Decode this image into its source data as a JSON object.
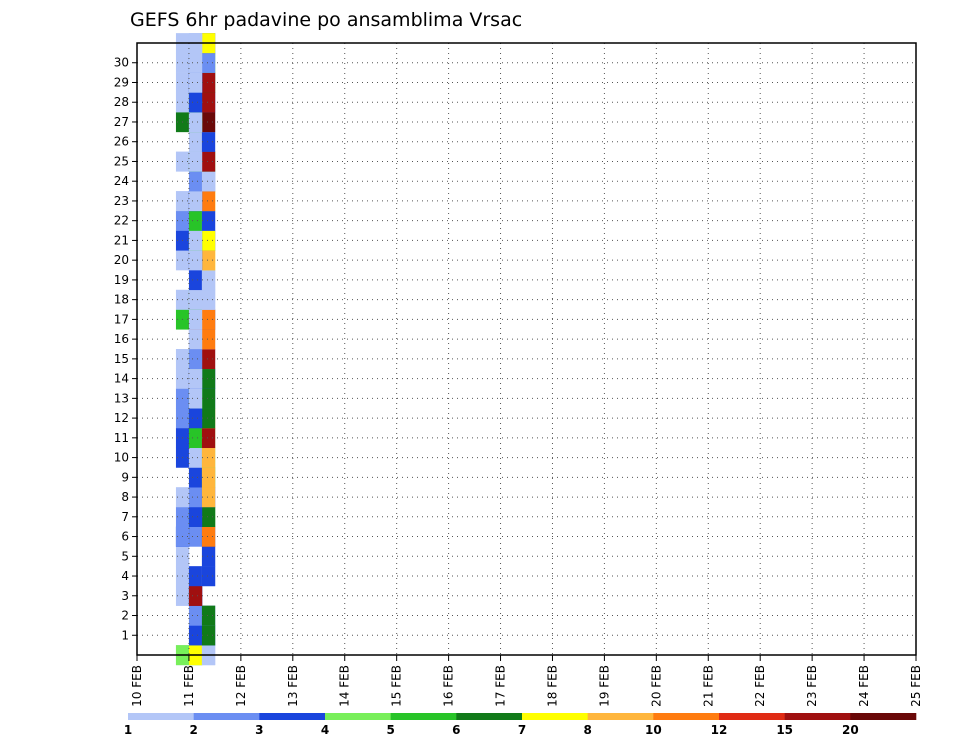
{
  "chart_data": {
    "type": "heatmap",
    "title": "GEFS 6hr padavine po ansamblima Vrsac",
    "xlabel": "",
    "ylabel": "",
    "x_tick_labels": [
      "10 FEB",
      "11 FEB",
      "12 FEB",
      "13 FEB",
      "14 FEB",
      "15 FEB",
      "16 FEB",
      "17 FEB",
      "18 FEB",
      "19 FEB",
      "20 FEB",
      "21 FEB",
      "22 FEB",
      "23 FEB",
      "24 FEB",
      "25 FEB"
    ],
    "y_tick_labels": [
      "1",
      "2",
      "3",
      "4",
      "5",
      "6",
      "7",
      "8",
      "9",
      "10",
      "11",
      "12",
      "13",
      "14",
      "15",
      "16",
      "17",
      "18",
      "19",
      "20",
      "21",
      "22",
      "23",
      "24",
      "25",
      "26",
      "27",
      "28",
      "29",
      "30"
    ],
    "x_step_hours": 6,
    "grid": true,
    "colorbar": {
      "labels": [
        "1",
        "2",
        "3",
        "4",
        "5",
        "6",
        "7",
        "8",
        "10",
        "12",
        "15",
        "20"
      ],
      "colors": [
        "#b3c6f7",
        "#6b8ef2",
        "#1a45dd",
        "#78ef5a",
        "#28c428",
        "#117a19",
        "#ffff00",
        "#ffb63d",
        "#ff7c10",
        "#e02b14",
        "#a01010",
        "#6a0808"
      ]
    },
    "cells": [
      [
        1,
        0,
        1
      ],
      [
        1,
        0,
        4
      ],
      [
        2,
        0,
        5
      ],
      [
        2,
        0,
        7
      ],
      [
        3,
        0,
        1
      ],
      [
        3,
        0,
        1
      ],
      [
        2,
        1,
        3
      ],
      [
        3,
        1,
        3
      ],
      [
        3,
        1,
        6
      ],
      [
        2,
        2,
        2
      ],
      [
        3,
        2,
        2
      ],
      [
        3,
        2,
        6
      ],
      [
        1,
        3,
        1
      ],
      [
        2,
        3,
        2
      ],
      [
        2,
        3,
        3
      ],
      [
        2,
        3,
        11
      ],
      [
        1,
        4,
        1
      ],
      [
        2,
        4,
        3
      ],
      [
        3,
        4,
        1
      ],
      [
        3,
        4,
        3
      ],
      [
        1,
        5,
        1
      ],
      [
        3,
        5,
        1
      ],
      [
        3,
        5,
        3
      ],
      [
        1,
        6,
        2
      ],
      [
        2,
        6,
        2
      ],
      [
        3,
        6,
        3
      ],
      [
        3,
        6,
        9
      ],
      [
        1,
        6,
        3
      ],
      [
        1,
        6,
        2
      ],
      [
        1,
        7,
        2
      ],
      [
        2,
        7,
        5
      ],
      [
        3,
        7,
        5
      ],
      [
        3,
        7,
        6
      ],
      [
        2,
        7,
        3
      ],
      [
        1,
        8,
        1
      ],
      [
        2,
        8,
        2
      ],
      [
        3,
        8,
        3
      ],
      [
        3,
        8,
        8
      ],
      [
        2,
        9,
        3
      ],
      [
        3,
        9,
        5
      ],
      [
        3,
        9,
        8
      ],
      [
        1,
        10,
        3
      ],
      [
        2,
        10,
        1
      ],
      [
        3,
        10,
        4
      ],
      [
        3,
        10,
        8
      ],
      [
        1,
        11,
        3
      ],
      [
        2,
        11,
        5
      ],
      [
        3,
        11,
        4
      ],
      [
        3,
        11,
        11
      ],
      [
        1,
        12,
        2
      ],
      [
        2,
        12,
        5
      ],
      [
        3,
        12,
        8
      ],
      [
        3,
        12,
        6
      ],
      [
        2,
        12,
        3
      ],
      [
        1,
        13,
        2
      ],
      [
        2,
        13,
        3
      ],
      [
        3,
        13,
        2
      ],
      [
        3,
        13,
        6
      ],
      [
        2,
        13,
        5
      ],
      [
        2,
        13,
        1
      ],
      [
        1,
        14,
        1
      ],
      [
        2,
        14,
        3
      ],
      [
        3,
        14,
        3
      ],
      [
        3,
        14,
        6
      ],
      [
        2,
        14,
        2
      ],
      [
        2,
        14,
        1
      ],
      [
        1,
        15,
        1
      ],
      [
        2,
        15,
        4
      ],
      [
        3,
        15,
        1
      ],
      [
        3,
        15,
        11
      ],
      [
        2,
        15,
        2
      ],
      [
        2,
        16,
        3
      ],
      [
        3,
        16,
        1
      ],
      [
        3,
        16,
        9
      ],
      [
        2,
        16,
        1
      ],
      [
        1,
        17,
        5
      ],
      [
        2,
        17,
        11
      ],
      [
        3,
        17,
        3
      ],
      [
        3,
        17,
        9
      ],
      [
        2,
        17,
        1
      ],
      [
        1,
        18,
        1
      ],
      [
        2,
        18,
        5
      ],
      [
        3,
        18,
        1
      ],
      [
        3,
        18,
        1
      ],
      [
        2,
        18,
        1
      ],
      [
        2,
        19,
        3
      ],
      [
        3,
        19,
        1
      ],
      [
        3,
        19,
        1
      ],
      [
        1,
        20,
        1
      ],
      [
        2,
        20,
        2
      ],
      [
        3,
        20,
        7
      ],
      [
        3,
        20,
        8
      ],
      [
        2,
        20,
        3
      ],
      [
        2,
        20,
        1
      ],
      [
        1,
        21,
        3
      ],
      [
        2,
        21,
        4
      ],
      [
        3,
        21,
        3
      ],
      [
        3,
        21,
        7
      ],
      [
        2,
        21,
        5
      ],
      [
        2,
        21,
        1
      ],
      [
        1,
        22,
        2
      ],
      [
        2,
        22,
        5
      ],
      [
        3,
        22,
        1
      ],
      [
        3,
        22,
        3
      ],
      [
        1,
        23,
        1
      ],
      [
        2,
        23,
        3
      ],
      [
        3,
        23,
        7
      ],
      [
        3,
        23,
        9
      ],
      [
        2,
        23,
        3
      ],
      [
        2,
        23,
        1
      ],
      [
        2,
        24,
        2
      ],
      [
        3,
        24,
        2
      ],
      [
        3,
        24,
        1
      ],
      [
        1,
        25,
        1
      ],
      [
        2,
        25,
        5
      ],
      [
        3,
        25,
        5
      ],
      [
        3,
        25,
        11
      ],
      [
        2,
        25,
        1
      ],
      [
        2,
        26,
        1
      ],
      [
        3,
        26,
        3
      ],
      [
        1,
        27,
        6
      ],
      [
        2,
        27,
        2
      ],
      [
        3,
        27,
        1
      ],
      [
        3,
        27,
        12
      ],
      [
        2,
        27,
        4
      ],
      [
        2,
        27,
        1
      ],
      [
        1,
        28,
        1
      ],
      [
        2,
        28,
        5
      ],
      [
        3,
        28,
        3
      ],
      [
        3,
        28,
        11
      ],
      [
        2,
        28,
        3
      ],
      [
        1,
        29,
        1
      ],
      [
        2,
        29,
        1
      ],
      [
        3,
        29,
        6
      ],
      [
        3,
        29,
        11
      ],
      [
        2,
        29,
        3
      ],
      [
        2,
        29,
        3
      ],
      [
        2,
        29,
        1
      ],
      [
        1,
        30,
        1
      ],
      [
        2,
        30,
        2
      ],
      [
        3,
        30,
        5
      ],
      [
        3,
        30,
        2
      ],
      [
        2,
        30,
        2
      ],
      [
        2,
        30,
        1
      ],
      [
        1,
        31,
        1
      ],
      [
        2,
        31,
        1
      ],
      [
        3,
        31,
        3
      ],
      [
        3,
        31,
        7
      ],
      [
        2,
        31,
        1
      ],
      [
        2,
        31,
        1
      ]
    ]
  }
}
